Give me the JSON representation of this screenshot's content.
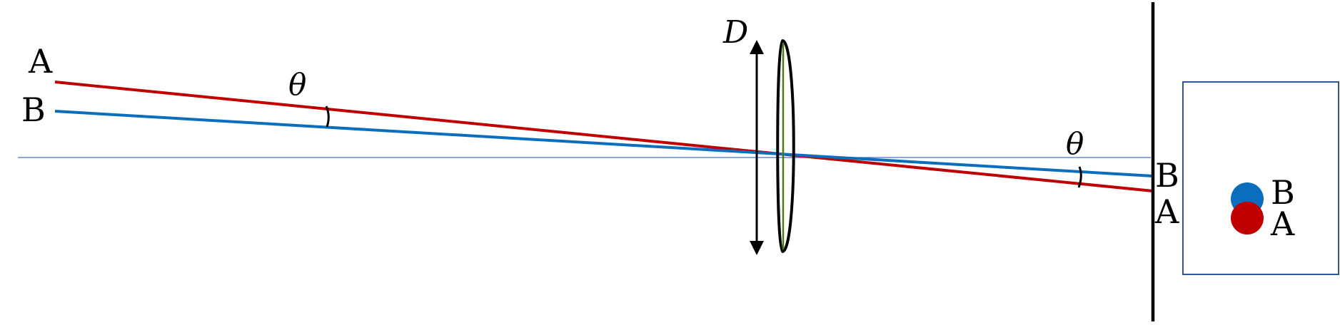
{
  "labels": {
    "source_a": "A",
    "source_b": "B",
    "angle_left": "θ",
    "angle_right": "θ",
    "aperture": "D",
    "image_b": "B",
    "image_a": "A",
    "panel_b": "B",
    "panel_a": "A"
  },
  "colors": {
    "ray_a": "#c00000",
    "ray_b": "#0a6ebd",
    "optical_axis": "#4472c4",
    "lens_outline": "#000000",
    "lens_core": "#4a7a1c",
    "screen": "#000000",
    "panel_border": "#2f5597",
    "dot_a": "#c00000",
    "dot_b": "#0a6ebd"
  }
}
